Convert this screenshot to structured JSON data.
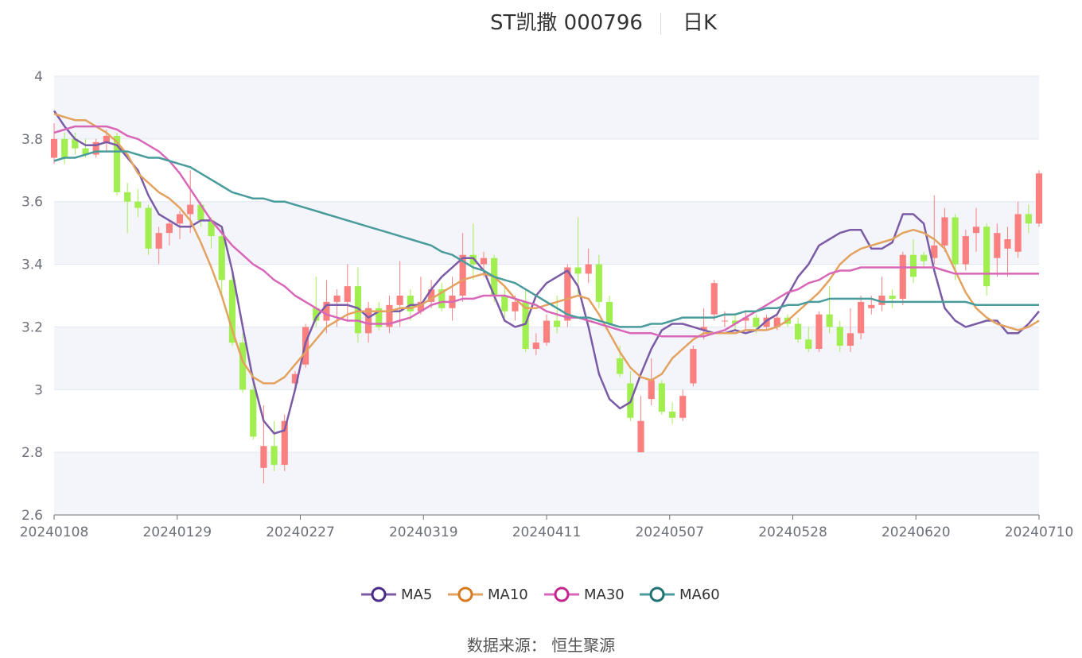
{
  "title": "ST凯撒 000796",
  "subtitle": "日K",
  "source": "数据来源： 恒生聚源",
  "colors": {
    "up": "#fa8080",
    "down": "#a0ee50",
    "MA5": "#7b5ba6",
    "MA10": "#e3a260",
    "MA30": "#d867b8",
    "MA60": "#4a9c9c",
    "grid": "#e0e6f1",
    "band": "#f3f5fb",
    "axis": "#6e7079"
  },
  "chart_data": {
    "type": "candlestick",
    "title": "ST凯撒 000796",
    "subtitle": "日K",
    "ylim": [
      2.6,
      4.0
    ],
    "yticks": [
      "2.6",
      "2.8",
      "3",
      "3.2",
      "3.4",
      "3.6",
      "3.8",
      "4"
    ],
    "xticks": [
      "20240108",
      "20240129",
      "20240227",
      "20240319",
      "20240411",
      "20240507",
      "20240528",
      "20240620",
      "20240710"
    ],
    "legend": [
      "MA5",
      "MA10",
      "MA30",
      "MA60"
    ],
    "legend_position": "bottom",
    "series": [
      {
        "name": "MA5",
        "values": [
          3.89,
          3.84,
          3.8,
          3.78,
          3.78,
          3.79,
          3.78,
          3.74,
          3.7,
          3.62,
          3.56,
          3.54,
          3.52,
          3.52,
          3.54,
          3.54,
          3.52,
          3.38,
          3.2,
          3.03,
          2.9,
          2.86,
          2.87,
          3.0,
          3.15,
          3.23,
          3.27,
          3.27,
          3.27,
          3.26,
          3.23,
          3.25,
          3.25,
          3.25,
          3.27,
          3.27,
          3.32,
          3.36,
          3.39,
          3.42,
          3.42,
          3.38,
          3.3,
          3.22,
          3.2,
          3.21,
          3.3,
          3.34,
          3.36,
          3.38,
          3.33,
          3.2,
          3.05,
          2.97,
          2.94,
          2.96,
          3.05,
          3.13,
          3.19,
          3.21,
          3.21,
          3.2,
          3.19,
          3.18,
          3.18,
          3.19,
          3.18,
          3.19,
          3.22,
          3.24,
          3.3,
          3.36,
          3.4,
          3.46,
          3.48,
          3.5,
          3.51,
          3.51,
          3.45,
          3.45,
          3.47,
          3.56,
          3.56,
          3.53,
          3.38,
          3.26,
          3.22,
          3.2,
          3.21,
          3.22,
          3.22,
          3.18,
          3.18,
          3.21,
          3.25
        ]
      },
      {
        "name": "MA10",
        "values": [
          3.88,
          3.87,
          3.86,
          3.86,
          3.84,
          3.82,
          3.79,
          3.75,
          3.69,
          3.66,
          3.63,
          3.61,
          3.58,
          3.54,
          3.47,
          3.39,
          3.3,
          3.19,
          3.09,
          3.04,
          3.02,
          3.02,
          3.04,
          3.08,
          3.12,
          3.16,
          3.2,
          3.22,
          3.24,
          3.25,
          3.25,
          3.25,
          3.25,
          3.26,
          3.26,
          3.27,
          3.29,
          3.31,
          3.33,
          3.35,
          3.36,
          3.37,
          3.36,
          3.33,
          3.29,
          3.26,
          3.26,
          3.27,
          3.28,
          3.29,
          3.3,
          3.29,
          3.24,
          3.18,
          3.12,
          3.07,
          3.04,
          3.03,
          3.05,
          3.1,
          3.13,
          3.16,
          3.18,
          3.18,
          3.18,
          3.18,
          3.19,
          3.19,
          3.19,
          3.2,
          3.22,
          3.25,
          3.28,
          3.31,
          3.35,
          3.4,
          3.43,
          3.45,
          3.46,
          3.47,
          3.48,
          3.5,
          3.51,
          3.5,
          3.48,
          3.45,
          3.38,
          3.31,
          3.26,
          3.23,
          3.21,
          3.2,
          3.19,
          3.2,
          3.22
        ]
      },
      {
        "name": "MA30",
        "values": [
          3.82,
          3.83,
          3.84,
          3.84,
          3.84,
          3.84,
          3.83,
          3.81,
          3.8,
          3.78,
          3.76,
          3.73,
          3.69,
          3.64,
          3.59,
          3.54,
          3.5,
          3.46,
          3.43,
          3.4,
          3.38,
          3.35,
          3.33,
          3.3,
          3.28,
          3.26,
          3.24,
          3.23,
          3.22,
          3.22,
          3.21,
          3.21,
          3.21,
          3.22,
          3.23,
          3.25,
          3.27,
          3.28,
          3.28,
          3.29,
          3.29,
          3.3,
          3.3,
          3.3,
          3.29,
          3.28,
          3.27,
          3.25,
          3.24,
          3.23,
          3.23,
          3.22,
          3.21,
          3.2,
          3.19,
          3.18,
          3.18,
          3.18,
          3.17,
          3.17,
          3.17,
          3.17,
          3.17,
          3.18,
          3.19,
          3.21,
          3.23,
          3.25,
          3.27,
          3.29,
          3.31,
          3.32,
          3.34,
          3.35,
          3.37,
          3.38,
          3.38,
          3.39,
          3.39,
          3.39,
          3.39,
          3.39,
          3.39,
          3.39,
          3.39,
          3.38,
          3.37,
          3.37,
          3.37,
          3.37,
          3.37,
          3.37,
          3.37,
          3.37,
          3.37
        ]
      },
      {
        "name": "MA60",
        "values": [
          3.73,
          3.74,
          3.74,
          3.75,
          3.76,
          3.76,
          3.76,
          3.76,
          3.75,
          3.74,
          3.74,
          3.73,
          3.72,
          3.71,
          3.69,
          3.67,
          3.65,
          3.63,
          3.62,
          3.61,
          3.61,
          3.6,
          3.6,
          3.59,
          3.58,
          3.57,
          3.56,
          3.55,
          3.54,
          3.53,
          3.52,
          3.51,
          3.5,
          3.49,
          3.48,
          3.47,
          3.46,
          3.44,
          3.43,
          3.41,
          3.39,
          3.38,
          3.36,
          3.35,
          3.34,
          3.32,
          3.3,
          3.28,
          3.26,
          3.24,
          3.23,
          3.23,
          3.22,
          3.21,
          3.2,
          3.2,
          3.2,
          3.21,
          3.21,
          3.22,
          3.23,
          3.23,
          3.23,
          3.23,
          3.24,
          3.24,
          3.25,
          3.25,
          3.26,
          3.26,
          3.27,
          3.27,
          3.28,
          3.28,
          3.29,
          3.29,
          3.29,
          3.29,
          3.29,
          3.28,
          3.28,
          3.28,
          3.28,
          3.28,
          3.28,
          3.28,
          3.28,
          3.28,
          3.27,
          3.27,
          3.27,
          3.27,
          3.27,
          3.27,
          3.27
        ]
      }
    ],
    "candles": [
      [
        3.74,
        3.8,
        3.72,
        3.85
      ],
      [
        3.8,
        3.74,
        3.72,
        3.82
      ],
      [
        3.8,
        3.77,
        3.75,
        3.82
      ],
      [
        3.77,
        3.75,
        3.74,
        3.8
      ],
      [
        3.75,
        3.79,
        3.74,
        3.8
      ],
      [
        3.79,
        3.81,
        3.76,
        3.83
      ],
      [
        3.81,
        3.63,
        3.62,
        3.82
      ],
      [
        3.63,
        3.6,
        3.5,
        3.66
      ],
      [
        3.6,
        3.58,
        3.55,
        3.64
      ],
      [
        3.58,
        3.45,
        3.43,
        3.59
      ],
      [
        3.45,
        3.5,
        3.4,
        3.52
      ],
      [
        3.5,
        3.53,
        3.46,
        3.54
      ],
      [
        3.53,
        3.56,
        3.48,
        3.57
      ],
      [
        3.56,
        3.59,
        3.5,
        3.7
      ],
      [
        3.59,
        3.54,
        3.52,
        3.6
      ],
      [
        3.54,
        3.49,
        3.45,
        3.55
      ],
      [
        3.49,
        3.35,
        3.3,
        3.52
      ],
      [
        3.35,
        3.15,
        3.14,
        3.38
      ],
      [
        3.15,
        3.0,
        2.99,
        3.18
      ],
      [
        3.0,
        2.85,
        2.84,
        3.05
      ],
      [
        2.75,
        2.82,
        2.7,
        2.95
      ],
      [
        2.82,
        2.76,
        2.74,
        2.9
      ],
      [
        2.76,
        2.9,
        2.74,
        2.92
      ],
      [
        3.02,
        3.05,
        3.0,
        3.06
      ],
      [
        3.08,
        3.2,
        3.07,
        3.21
      ],
      [
        3.26,
        3.22,
        3.2,
        3.36
      ],
      [
        3.22,
        3.28,
        3.18,
        3.35
      ],
      [
        3.28,
        3.3,
        3.2,
        3.32
      ],
      [
        3.28,
        3.33,
        3.22,
        3.4
      ],
      [
        3.33,
        3.18,
        3.15,
        3.39
      ],
      [
        3.18,
        3.26,
        3.15,
        3.28
      ],
      [
        3.26,
        3.2,
        3.19,
        3.28
      ],
      [
        3.2,
        3.27,
        3.18,
        3.3
      ],
      [
        3.27,
        3.3,
        3.2,
        3.41
      ],
      [
        3.3,
        3.25,
        3.22,
        3.32
      ],
      [
        3.25,
        3.28,
        3.24,
        3.36
      ],
      [
        3.28,
        3.32,
        3.26,
        3.35
      ],
      [
        3.32,
        3.26,
        3.25,
        3.34
      ],
      [
        3.26,
        3.3,
        3.22,
        3.36
      ],
      [
        3.3,
        3.43,
        3.28,
        3.5
      ],
      [
        3.43,
        3.4,
        3.35,
        3.53
      ],
      [
        3.4,
        3.42,
        3.36,
        3.44
      ],
      [
        3.42,
        3.3,
        3.28,
        3.43
      ],
      [
        3.3,
        3.25,
        3.23,
        3.33
      ],
      [
        3.25,
        3.28,
        3.22,
        3.3
      ],
      [
        3.28,
        3.13,
        3.12,
        3.32
      ],
      [
        3.13,
        3.15,
        3.11,
        3.18
      ],
      [
        3.15,
        3.22,
        3.14,
        3.24
      ],
      [
        3.22,
        3.2,
        3.18,
        3.3
      ],
      [
        3.22,
        3.39,
        3.2,
        3.4
      ],
      [
        3.39,
        3.37,
        3.3,
        3.55
      ],
      [
        3.37,
        3.4,
        3.34,
        3.45
      ],
      [
        3.4,
        3.28,
        3.26,
        3.43
      ],
      [
        3.28,
        3.21,
        3.2,
        3.3
      ],
      [
        3.1,
        3.05,
        3.04,
        3.14
      ],
      [
        3.02,
        2.91,
        2.9,
        3.06
      ],
      [
        2.8,
        2.9,
        2.8,
        2.98
      ],
      [
        2.97,
        3.03,
        2.95,
        3.1
      ],
      [
        3.02,
        2.93,
        2.92,
        3.03
      ],
      [
        2.93,
        2.91,
        2.89,
        2.96
      ],
      [
        2.91,
        2.98,
        2.9,
        3.0
      ],
      [
        3.02,
        3.13,
        3.01,
        3.14
      ],
      [
        3.19,
        3.2,
        3.16,
        3.26
      ],
      [
        3.24,
        3.34,
        3.22,
        3.35
      ],
      [
        3.22,
        3.22,
        3.2,
        3.25
      ],
      [
        3.22,
        3.21,
        3.19,
        3.24
      ],
      [
        3.22,
        3.23,
        3.19,
        3.25
      ],
      [
        3.23,
        3.2,
        3.18,
        3.24
      ],
      [
        3.2,
        3.23,
        3.19,
        3.24
      ],
      [
        3.2,
        3.23,
        3.19,
        3.24
      ],
      [
        3.23,
        3.21,
        3.2,
        3.24
      ],
      [
        3.21,
        3.16,
        3.15,
        3.23
      ],
      [
        3.16,
        3.13,
        3.12,
        3.2
      ],
      [
        3.13,
        3.24,
        3.12,
        3.25
      ],
      [
        3.24,
        3.2,
        3.18,
        3.33
      ],
      [
        3.2,
        3.14,
        3.12,
        3.22
      ],
      [
        3.14,
        3.18,
        3.12,
        3.26
      ],
      [
        3.18,
        3.28,
        3.16,
        3.3
      ],
      [
        3.26,
        3.27,
        3.24,
        3.3
      ],
      [
        3.27,
        3.3,
        3.25,
        3.36
      ],
      [
        3.3,
        3.29,
        3.26,
        3.32
      ],
      [
        3.29,
        3.43,
        3.27,
        3.44
      ],
      [
        3.43,
        3.36,
        3.34,
        3.48
      ],
      [
        3.43,
        3.41,
        3.39,
        3.44
      ],
      [
        3.42,
        3.46,
        3.4,
        3.62
      ],
      [
        3.46,
        3.55,
        3.44,
        3.58
      ],
      [
        3.55,
        3.4,
        3.35,
        3.56
      ],
      [
        3.4,
        3.49,
        3.38,
        3.51
      ],
      [
        3.5,
        3.52,
        3.44,
        3.58
      ],
      [
        3.52,
        3.33,
        3.3,
        3.53
      ],
      [
        3.42,
        3.5,
        3.36,
        3.53
      ],
      [
        3.45,
        3.48,
        3.36,
        3.52
      ],
      [
        3.44,
        3.56,
        3.42,
        3.6
      ],
      [
        3.56,
        3.53,
        3.5,
        3.59
      ],
      [
        3.53,
        3.69,
        3.52,
        3.7
      ]
    ]
  }
}
